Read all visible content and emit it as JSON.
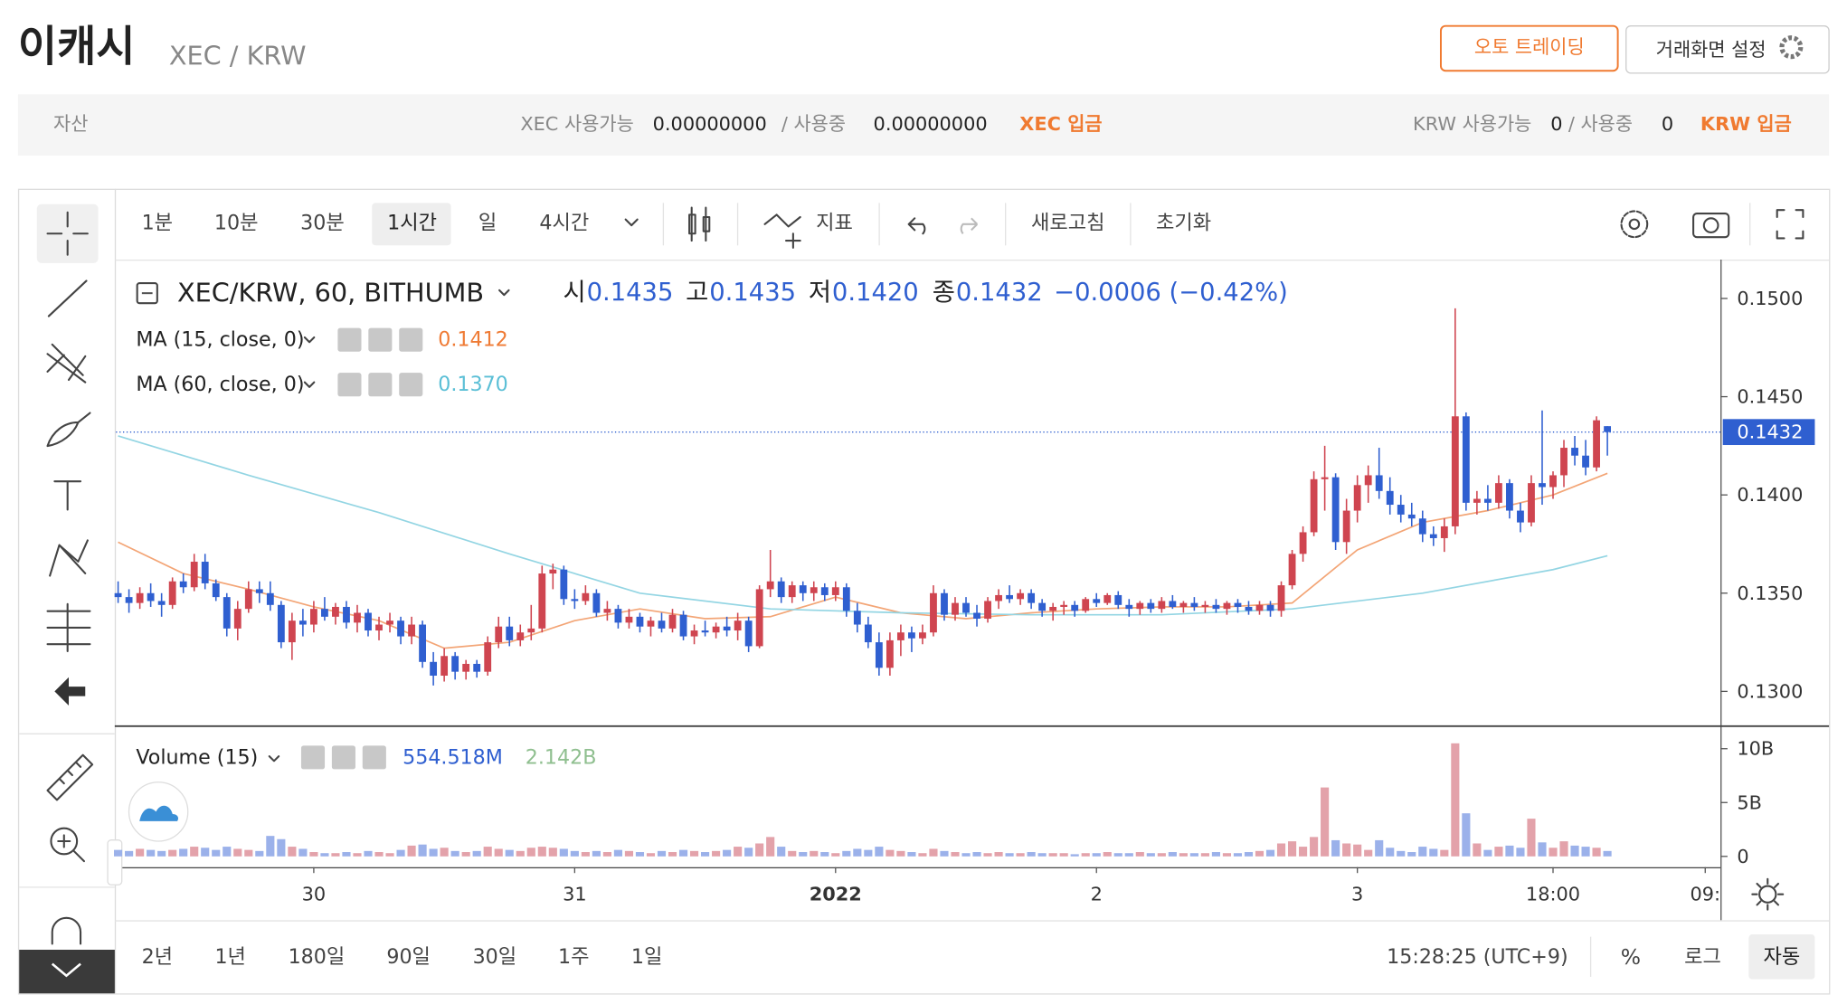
{
  "header": {
    "title": "이캐시",
    "pair": "XEC / KRW",
    "buttons": [
      "오토 트레이딩",
      "거래화면 설정"
    ]
  },
  "assets": {
    "label": "자산",
    "xec_available_label": "XEC 사용가능",
    "xec_available": "0.00000000",
    "xec_in_use_label": "/ 사용중",
    "xec_in_use": "0.00000000",
    "xec_deposit": "XEC 입금",
    "krw_available_label": "KRW 사용가능",
    "krw_available": "0",
    "krw_in_use_label": "/ 사용중",
    "krw_in_use": "0",
    "krw_deposit": "KRW 입금"
  },
  "toolbar": {
    "intervals": [
      "1분",
      "10분",
      "30분",
      "1시간",
      "일",
      "4시간"
    ],
    "selected": 3,
    "indicators": "지표",
    "refresh": "새로고침",
    "reset": "초기화"
  },
  "footer": {
    "ranges": [
      "2년",
      "1년",
      "180일",
      "90일",
      "30일",
      "1주",
      "1일"
    ],
    "clock": "15:28:25 (UTC+9)",
    "percent": "%",
    "log": "로그",
    "auto": "자동"
  },
  "chart_data": {
    "type": "candlestick",
    "legend": {
      "symbol": "XEC/KRW, 60, BITHUMB",
      "items": [
        {
          "label": "시",
          "value": "0.1435"
        },
        {
          "label": "고",
          "value": "0.1435"
        },
        {
          "label": "저",
          "value": "0.1420"
        },
        {
          "label": "종",
          "value": "0.1432"
        }
      ],
      "change": "−0.0006 (−0.42%)"
    },
    "up_color": "#cf4550",
    "down_color": "#2f5fd0",
    "up_volume_color": "#e3a2aa",
    "down_volume_color": "#9bb1ea",
    "xlim": [
      -0.2,
      147.4
    ],
    "xticks": [
      {
        "value": 18,
        "label": "30"
      },
      {
        "value": 42,
        "label": "31"
      },
      {
        "value": 66,
        "label": "2022"
      },
      {
        "value": 90,
        "label": "2"
      },
      {
        "value": 114,
        "label": "3"
      },
      {
        "value": 132,
        "label": "18:00"
      },
      {
        "value": 146,
        "label": "09:"
      }
    ],
    "ylim": [
      0.12826,
      0.15186
    ],
    "yticks": [
      {
        "value": 0.13,
        "label": "0.1300"
      },
      {
        "value": 0.135,
        "label": "0.1350"
      },
      {
        "value": 0.14,
        "label": "0.1400"
      },
      {
        "value": 0.145,
        "label": "0.1450"
      },
      {
        "value": 0.15,
        "label": "0.1500"
      }
    ],
    "last_price": {
      "value": 0.1432,
      "label": "0.1432"
    },
    "candles": [
      [
        0.135,
        0.1356,
        0.1345,
        0.1348
      ],
      [
        0.1348,
        0.1352,
        0.134,
        0.1345
      ],
      [
        0.1345,
        0.1353,
        0.1342,
        0.135
      ],
      [
        0.135,
        0.1355,
        0.1343,
        0.1346
      ],
      [
        0.1346,
        0.135,
        0.1338,
        0.1344
      ],
      [
        0.1344,
        0.1358,
        0.1342,
        0.1356
      ],
      [
        0.1356,
        0.136,
        0.135,
        0.1353
      ],
      [
        0.1353,
        0.137,
        0.1351,
        0.1366
      ],
      [
        0.1366,
        0.137,
        0.1352,
        0.1355
      ],
      [
        0.1355,
        0.1357,
        0.1346,
        0.1348
      ],
      [
        0.1348,
        0.135,
        0.1328,
        0.1332
      ],
      [
        0.1332,
        0.1346,
        0.1326,
        0.1342
      ],
      [
        0.1342,
        0.1356,
        0.134,
        0.1352
      ],
      [
        0.1352,
        0.1356,
        0.1345,
        0.135
      ],
      [
        0.135,
        0.1356,
        0.1341,
        0.1344
      ],
      [
        0.1344,
        0.1346,
        0.1322,
        0.1325
      ],
      [
        0.1325,
        0.134,
        0.1316,
        0.1336
      ],
      [
        0.1336,
        0.1342,
        0.1328,
        0.1334
      ],
      [
        0.1334,
        0.1346,
        0.133,
        0.1342
      ],
      [
        0.1342,
        0.1348,
        0.1336,
        0.1338
      ],
      [
        0.1338,
        0.1345,
        0.1334,
        0.1343
      ],
      [
        0.1343,
        0.1346,
        0.1332,
        0.1335
      ],
      [
        0.1335,
        0.1344,
        0.133,
        0.134
      ],
      [
        0.134,
        0.1342,
        0.1328,
        0.1331
      ],
      [
        0.1331,
        0.1338,
        0.1326,
        0.1334
      ],
      [
        0.1334,
        0.134,
        0.133,
        0.1336
      ],
      [
        0.1336,
        0.1338,
        0.1324,
        0.1328
      ],
      [
        0.1328,
        0.1338,
        0.1324,
        0.1334
      ],
      [
        0.1334,
        0.1336,
        0.1312,
        0.1315
      ],
      [
        0.1315,
        0.132,
        0.1303,
        0.1308
      ],
      [
        0.1308,
        0.1322,
        0.1305,
        0.1318
      ],
      [
        0.1318,
        0.132,
        0.1306,
        0.131
      ],
      [
        0.131,
        0.1316,
        0.1306,
        0.1314
      ],
      [
        0.1314,
        0.1316,
        0.1307,
        0.131
      ],
      [
        0.131,
        0.1328,
        0.1308,
        0.1325
      ],
      [
        0.1325,
        0.1338,
        0.1322,
        0.1333
      ],
      [
        0.1333,
        0.1338,
        0.1323,
        0.1326
      ],
      [
        0.1326,
        0.1334,
        0.1323,
        0.133
      ],
      [
        0.133,
        0.1344,
        0.1326,
        0.1332
      ],
      [
        0.1332,
        0.1364,
        0.133,
        0.136
      ],
      [
        0.136,
        0.1365,
        0.1352,
        0.1362
      ],
      [
        0.1362,
        0.1364,
        0.1344,
        0.1347
      ],
      [
        0.1347,
        0.1352,
        0.1342,
        0.1346
      ],
      [
        0.1346,
        0.1354,
        0.1344,
        0.135
      ],
      [
        0.135,
        0.1352,
        0.1338,
        0.134
      ],
      [
        0.134,
        0.1346,
        0.1336,
        0.1342
      ],
      [
        0.1342,
        0.1344,
        0.1332,
        0.1335
      ],
      [
        0.1335,
        0.1342,
        0.1332,
        0.1338
      ],
      [
        0.1338,
        0.134,
        0.133,
        0.1333
      ],
      [
        0.1333,
        0.1338,
        0.1328,
        0.1336
      ],
      [
        0.1336,
        0.134,
        0.133,
        0.1332
      ],
      [
        0.1332,
        0.1342,
        0.133,
        0.1339
      ],
      [
        0.1339,
        0.1341,
        0.1326,
        0.1328
      ],
      [
        0.1328,
        0.1334,
        0.1324,
        0.1331
      ],
      [
        0.1331,
        0.1336,
        0.1328,
        0.133
      ],
      [
        0.133,
        0.1335,
        0.1327,
        0.1333
      ],
      [
        0.1333,
        0.1338,
        0.1328,
        0.1331
      ],
      [
        0.1331,
        0.134,
        0.1326,
        0.1336
      ],
      [
        0.1336,
        0.1338,
        0.132,
        0.1323
      ],
      [
        0.1323,
        0.1354,
        0.1322,
        0.1352
      ],
      [
        0.1352,
        0.1372,
        0.1348,
        0.1356
      ],
      [
        0.1356,
        0.1358,
        0.1345,
        0.1348
      ],
      [
        0.1348,
        0.1356,
        0.1345,
        0.1354
      ],
      [
        0.1354,
        0.1356,
        0.1346,
        0.135
      ],
      [
        0.135,
        0.1356,
        0.1346,
        0.1353
      ],
      [
        0.1353,
        0.1355,
        0.1346,
        0.1349
      ],
      [
        0.1349,
        0.1356,
        0.1346,
        0.1353
      ],
      [
        0.1353,
        0.1355,
        0.1338,
        0.1341
      ],
      [
        0.1341,
        0.1345,
        0.133,
        0.1334
      ],
      [
        0.1334,
        0.1338,
        0.1322,
        0.1325
      ],
      [
        0.1325,
        0.133,
        0.1308,
        0.1312
      ],
      [
        0.1312,
        0.133,
        0.1308,
        0.1326
      ],
      [
        0.1326,
        0.1334,
        0.1318,
        0.133
      ],
      [
        0.133,
        0.1333,
        0.132,
        0.1327
      ],
      [
        0.1327,
        0.1334,
        0.1324,
        0.133
      ],
      [
        0.133,
        0.1354,
        0.1328,
        0.135
      ],
      [
        0.135,
        0.1352,
        0.1336,
        0.1339
      ],
      [
        0.1339,
        0.1348,
        0.1336,
        0.1345
      ],
      [
        0.1345,
        0.1348,
        0.1338,
        0.134
      ],
      [
        0.134,
        0.1344,
        0.1333,
        0.1337
      ],
      [
        0.1337,
        0.1348,
        0.1335,
        0.1346
      ],
      [
        0.1346,
        0.1352,
        0.1342,
        0.1349
      ],
      [
        0.1349,
        0.1354,
        0.1345,
        0.1347
      ],
      [
        0.1347,
        0.1352,
        0.1344,
        0.135
      ],
      [
        0.135,
        0.1352,
        0.1342,
        0.1345
      ],
      [
        0.1345,
        0.1347,
        0.1338,
        0.1341
      ],
      [
        0.1341,
        0.1345,
        0.1336,
        0.1343
      ],
      [
        0.1343,
        0.1346,
        0.1339,
        0.1344
      ],
      [
        0.1344,
        0.1346,
        0.1338,
        0.1341
      ],
      [
        0.1341,
        0.1348,
        0.134,
        0.1347
      ],
      [
        0.1347,
        0.135,
        0.1343,
        0.1345
      ],
      [
        0.1345,
        0.135,
        0.1344,
        0.1349
      ],
      [
        0.1349,
        0.1351,
        0.1342,
        0.1344
      ],
      [
        0.1344,
        0.1347,
        0.1338,
        0.1342
      ],
      [
        0.1342,
        0.1346,
        0.1339,
        0.1345
      ],
      [
        0.1345,
        0.1347,
        0.134,
        0.1342
      ],
      [
        0.1342,
        0.1348,
        0.134,
        0.1346
      ],
      [
        0.1346,
        0.1349,
        0.1342,
        0.1343
      ],
      [
        0.1343,
        0.1346,
        0.134,
        0.1345
      ],
      [
        0.1345,
        0.1348,
        0.1341,
        0.1343
      ],
      [
        0.1343,
        0.1346,
        0.134,
        0.1344
      ],
      [
        0.1344,
        0.1347,
        0.134,
        0.1342
      ],
      [
        0.1342,
        0.1346,
        0.1339,
        0.1345
      ],
      [
        0.1345,
        0.1347,
        0.134,
        0.1343
      ],
      [
        0.1343,
        0.1346,
        0.1339,
        0.1341
      ],
      [
        0.1341,
        0.1346,
        0.1339,
        0.1344
      ],
      [
        0.1344,
        0.1346,
        0.1338,
        0.1341
      ],
      [
        0.1341,
        0.1356,
        0.1338,
        0.1354
      ],
      [
        0.1354,
        0.1372,
        0.1352,
        0.137
      ],
      [
        0.137,
        0.1384,
        0.1366,
        0.1381
      ],
      [
        0.1381,
        0.1412,
        0.1379,
        0.1408
      ],
      [
        0.1408,
        0.1425,
        0.1392,
        0.1409
      ],
      [
        0.1409,
        0.1411,
        0.1372,
        0.1376
      ],
      [
        0.1376,
        0.1398,
        0.137,
        0.1392
      ],
      [
        0.1392,
        0.141,
        0.1386,
        0.1405
      ],
      [
        0.1405,
        0.1415,
        0.1396,
        0.141
      ],
      [
        0.141,
        0.1424,
        0.1398,
        0.1402
      ],
      [
        0.1402,
        0.1409,
        0.139,
        0.1395
      ],
      [
        0.1395,
        0.14,
        0.1386,
        0.139
      ],
      [
        0.139,
        0.1396,
        0.1384,
        0.1388
      ],
      [
        0.1388,
        0.1392,
        0.1376,
        0.138
      ],
      [
        0.138,
        0.1384,
        0.1374,
        0.1378
      ],
      [
        0.1378,
        0.1388,
        0.1371,
        0.1384
      ],
      [
        0.1384,
        0.1495,
        0.138,
        0.144
      ],
      [
        0.144,
        0.1442,
        0.1392,
        0.1396
      ],
      [
        0.1396,
        0.1402,
        0.139,
        0.1398
      ],
      [
        0.1398,
        0.1405,
        0.1392,
        0.1396
      ],
      [
        0.1396,
        0.141,
        0.1393,
        0.1406
      ],
      [
        0.1406,
        0.1408,
        0.1388,
        0.1392
      ],
      [
        0.1392,
        0.1396,
        0.1381,
        0.1386
      ],
      [
        0.1386,
        0.141,
        0.1384,
        0.1406
      ],
      [
        0.1406,
        0.1443,
        0.1395,
        0.1404
      ],
      [
        0.1404,
        0.1412,
        0.1398,
        0.141
      ],
      [
        0.141,
        0.1428,
        0.1404,
        0.1424
      ],
      [
        0.1424,
        0.143,
        0.1415,
        0.142
      ],
      [
        0.142,
        0.1428,
        0.141,
        0.1414
      ],
      [
        0.1414,
        0.144,
        0.1412,
        0.1438
      ],
      [
        0.1435,
        0.1435,
        0.142,
        0.1432
      ]
    ],
    "series": [
      {
        "name": "MA (15, close, 0)",
        "color": "#f3a576",
        "label_color": "#ef7b35",
        "last_label": "0.1412",
        "x": [
          0,
          6,
          12,
          18,
          24,
          30,
          36,
          42,
          48,
          54,
          60,
          66,
          72,
          78,
          84,
          90,
          96,
          102,
          108,
          114,
          120,
          126,
          132,
          137
        ],
        "values": [
          0.1376,
          0.136,
          0.1352,
          0.1343,
          0.1336,
          0.1322,
          0.1325,
          0.1336,
          0.1342,
          0.1337,
          0.1338,
          0.1348,
          0.134,
          0.1337,
          0.134,
          0.1342,
          0.1343,
          0.1343,
          0.1345,
          0.1372,
          0.1386,
          0.1392,
          0.14,
          0.1411
        ]
      },
      {
        "name": "MA (60, close, 0)",
        "color": "#93d5e3",
        "label_color": "#5bbfd6",
        "last_label": "0.1370",
        "x": [
          0,
          12,
          24,
          36,
          48,
          60,
          72,
          84,
          96,
          108,
          120,
          132,
          137
        ],
        "values": [
          0.143,
          0.141,
          0.1391,
          0.137,
          0.135,
          0.1342,
          0.134,
          0.1339,
          0.1339,
          0.1342,
          0.135,
          0.1362,
          0.1369
        ]
      }
    ],
    "volume": {
      "name": "Volume (15)",
      "labels": [
        "554.518M",
        "2.142B"
      ],
      "label_colors": [
        "#2f5fd0",
        "#8fbf8f"
      ],
      "ylim": [
        -1,
        11.6
      ],
      "yticks": [
        0,
        {
          "value": 5,
          "label": "5B"
        },
        {
          "value": 10,
          "label": "10B"
        }
      ],
      "values": [
        0.6,
        0.5,
        0.7,
        0.6,
        0.5,
        0.6,
        0.7,
        0.9,
        0.8,
        0.6,
        0.9,
        0.7,
        0.6,
        0.5,
        1.9,
        1.6,
        0.9,
        0.7,
        0.4,
        0.3,
        0.3,
        0.4,
        0.3,
        0.5,
        0.4,
        0.3,
        0.6,
        1.0,
        1.1,
        0.7,
        0.8,
        0.5,
        0.4,
        0.5,
        0.9,
        0.7,
        0.6,
        0.5,
        0.8,
        0.9,
        0.8,
        0.7,
        0.5,
        0.4,
        0.5,
        0.4,
        0.6,
        0.5,
        0.4,
        0.3,
        0.5,
        0.4,
        0.6,
        0.5,
        0.4,
        0.5,
        0.6,
        0.9,
        0.8,
        1.2,
        1.8,
        0.9,
        0.5,
        0.4,
        0.5,
        0.4,
        0.3,
        0.5,
        0.7,
        0.6,
        0.9,
        0.6,
        0.5,
        0.4,
        0.3,
        0.7,
        0.5,
        0.4,
        0.3,
        0.4,
        0.3,
        0.4,
        0.3,
        0.3,
        0.4,
        0.3,
        0.3,
        0.3,
        0.2,
        0.3,
        0.3,
        0.4,
        0.3,
        0.3,
        0.4,
        0.3,
        0.3,
        0.4,
        0.3,
        0.3,
        0.3,
        0.4,
        0.3,
        0.3,
        0.4,
        0.5,
        0.6,
        1.2,
        1.4,
        0.9,
        1.8,
        6.4,
        1.5,
        1.2,
        1.1,
        0.6,
        1.5,
        0.8,
        0.5,
        0.4,
        0.9,
        0.7,
        0.6,
        10.5,
        4.0,
        1.2,
        0.6,
        0.9,
        1.0,
        0.8,
        3.5,
        1.3,
        0.8,
        1.4,
        1.0,
        0.9,
        0.8,
        0.5
      ]
    }
  }
}
